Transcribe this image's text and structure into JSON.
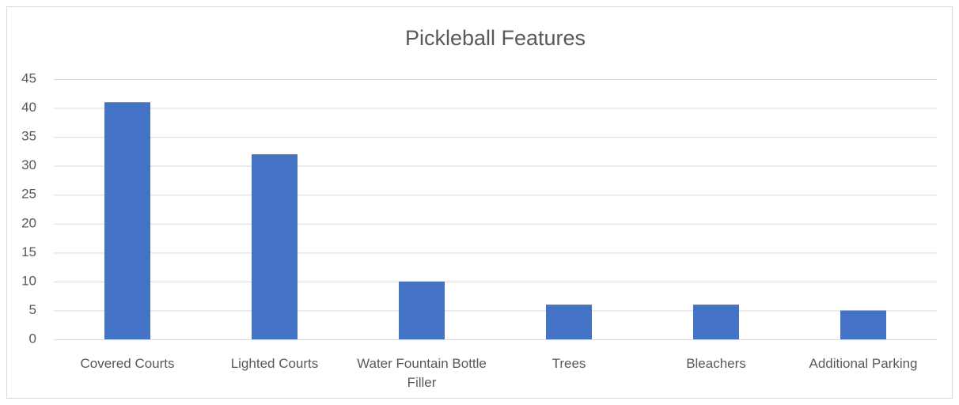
{
  "chart_data": {
    "type": "bar",
    "title": "Pickleball Features",
    "categories": [
      "Covered Courts",
      "Lighted Courts",
      "Water Fountain Bottle Filler",
      "Trees",
      "Bleachers",
      "Additional Parking"
    ],
    "values": [
      41,
      32,
      10,
      6,
      6,
      5
    ],
    "color": "#4472c4",
    "ylim": [
      0,
      45
    ],
    "yticks": [
      0,
      5,
      10,
      15,
      20,
      25,
      30,
      35,
      40,
      45
    ],
    "grid": true
  }
}
